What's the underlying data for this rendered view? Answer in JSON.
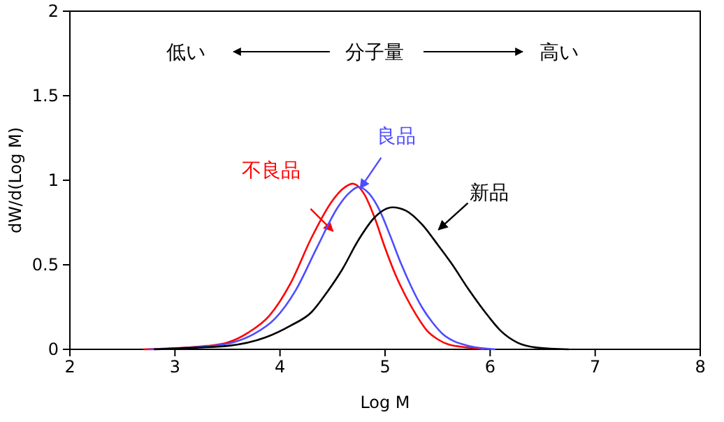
{
  "chart_data": {
    "type": "line",
    "xlabel": "Log M",
    "ylabel": "dW/d(Log M)",
    "xlim": [
      2,
      8
    ],
    "xticks": [
      2,
      3,
      4,
      5,
      6,
      7,
      8
    ],
    "ylim": [
      0,
      2
    ],
    "yticks": [
      0,
      0.5,
      1,
      1.5,
      2
    ],
    "grid": false,
    "legend": false,
    "marker": "none",
    "line_style": "solid",
    "annotations": [
      "低い",
      "分子量",
      "高い"
    ],
    "series": [
      {
        "name": "不良品",
        "color": "#ff0000",
        "x": [
          2.7,
          3.1,
          3.3,
          3.5,
          3.7,
          3.9,
          4.1,
          4.3,
          4.5,
          4.6,
          4.69,
          4.8,
          4.9,
          5.0,
          5.1,
          5.2,
          5.3,
          5.4,
          5.5,
          5.6,
          5.8,
          5.95
        ],
        "values": [
          0,
          0.01,
          0.02,
          0.04,
          0.1,
          0.2,
          0.39,
          0.66,
          0.88,
          0.95,
          0.98,
          0.92,
          0.78,
          0.6,
          0.44,
          0.31,
          0.2,
          0.11,
          0.06,
          0.03,
          0.01,
          0
        ]
      },
      {
        "name": "良品",
        "color": "#4d4dff",
        "x": [
          2.75,
          3.35,
          3.55,
          3.75,
          3.95,
          4.15,
          4.35,
          4.55,
          4.65,
          4.75,
          4.85,
          4.95,
          5.05,
          5.15,
          5.25,
          5.35,
          5.45,
          5.55,
          5.65,
          5.8,
          6.05
        ],
        "values": [
          0,
          0.02,
          0.04,
          0.09,
          0.18,
          0.35,
          0.6,
          0.84,
          0.92,
          0.96,
          0.92,
          0.82,
          0.67,
          0.51,
          0.37,
          0.25,
          0.16,
          0.09,
          0.05,
          0.02,
          0
        ]
      },
      {
        "name": "新品",
        "color": "#000000",
        "x": [
          2.8,
          3.2,
          3.5,
          3.86,
          4.1,
          4.3,
          4.45,
          4.59,
          4.75,
          4.9,
          5.07,
          5.2,
          5.35,
          5.5,
          5.63,
          5.8,
          5.99,
          6.1,
          6.26,
          6.45,
          6.75
        ],
        "values": [
          0,
          0.01,
          0.02,
          0.07,
          0.14,
          0.22,
          0.34,
          0.47,
          0.65,
          0.78,
          0.84,
          0.82,
          0.74,
          0.62,
          0.51,
          0.35,
          0.19,
          0.11,
          0.04,
          0.01,
          0
        ]
      }
    ]
  }
}
